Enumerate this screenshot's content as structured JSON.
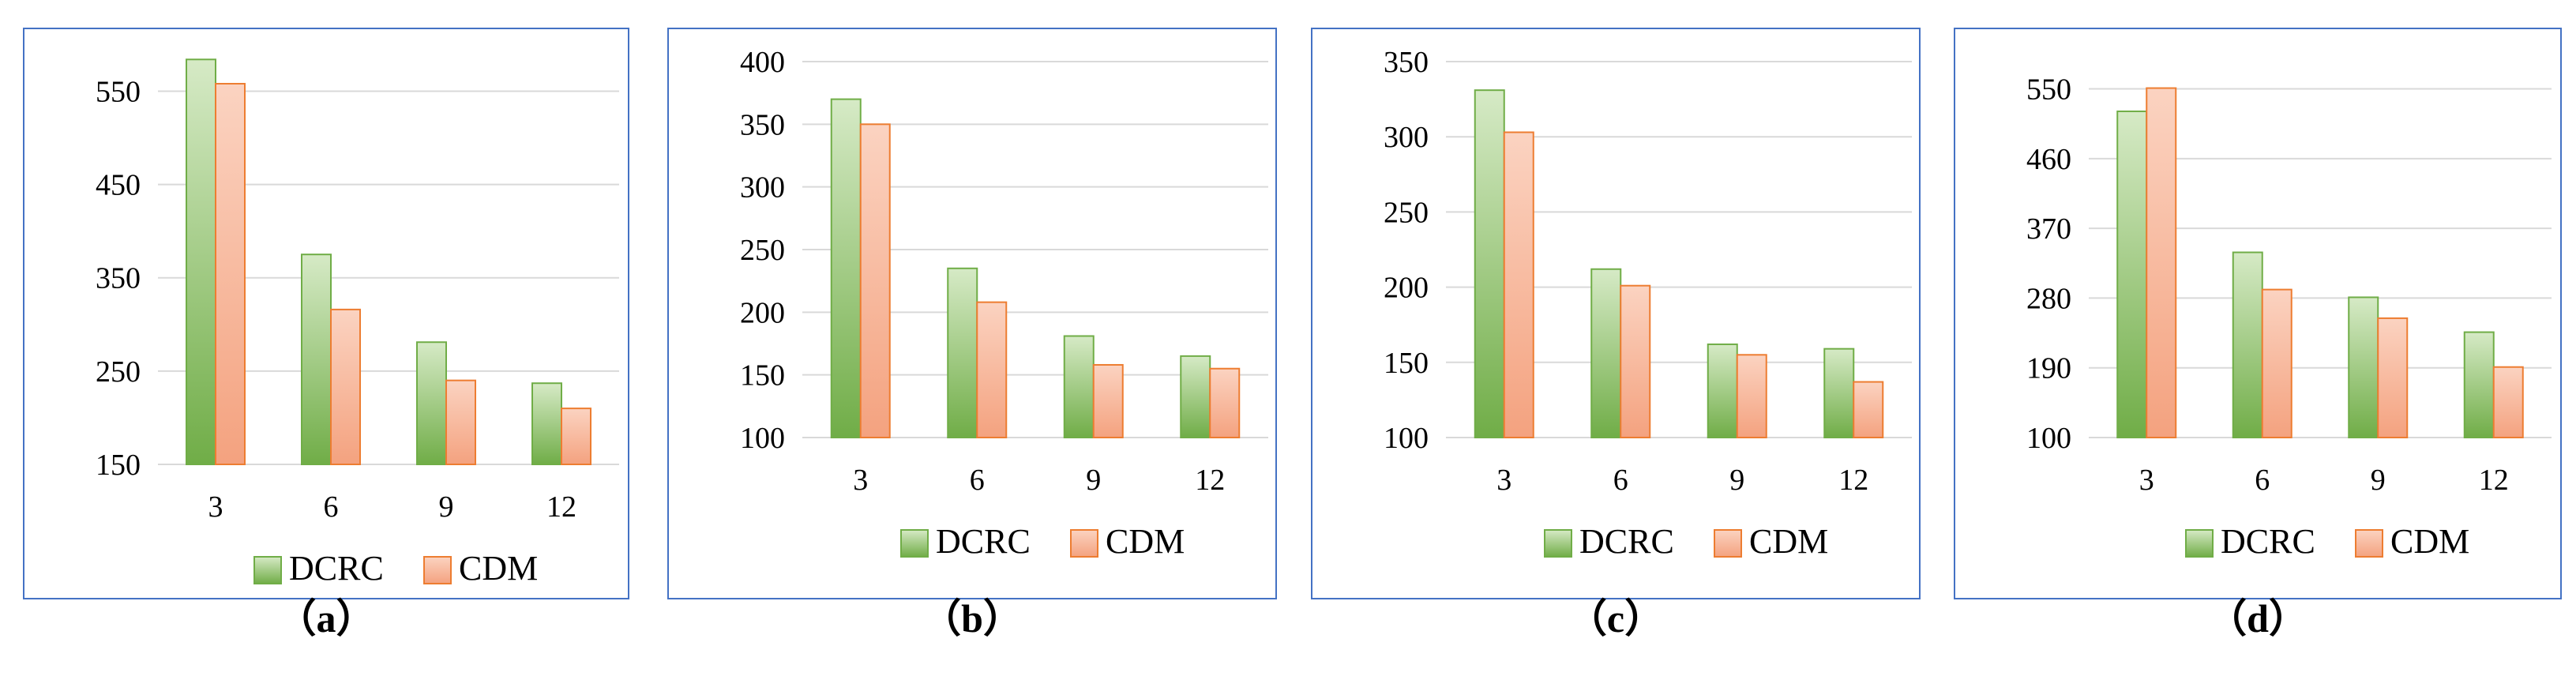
{
  "colors": {
    "frame": "#4472C4",
    "grid": "#D9D9D9",
    "text": "#000000",
    "dcrc_top": "#D6EAC6",
    "dcrc_bottom": "#70AD47",
    "dcrc_edge": "#70AD47",
    "cdm_top": "#FBD3C1",
    "cdm_bottom": "#F4A27F",
    "cdm_edge": "#ED7D31"
  },
  "chart_data": [
    {
      "type": "bar",
      "caption": "（a）",
      "categories": [
        "3",
        "6",
        "9",
        "12"
      ],
      "series": [
        {
          "name": "DCRC",
          "values": [
            584,
            375,
            281,
            237
          ]
        },
        {
          "name": "CDM",
          "values": [
            558,
            316,
            240,
            210
          ]
        }
      ],
      "yticks": [
        "150",
        "250",
        "350",
        "450",
        "550"
      ],
      "ylim": [
        150,
        580
      ],
      "legend": "bottom"
    },
    {
      "type": "bar",
      "caption": "（b）",
      "categories": [
        "3",
        "6",
        "9",
        "12"
      ],
      "series": [
        {
          "name": "DCRC",
          "values": [
            370,
            235,
            181,
            165
          ]
        },
        {
          "name": "CDM",
          "values": [
            350,
            208,
            158,
            155
          ]
        }
      ],
      "yticks": [
        "100",
        "150",
        "200",
        "250",
        "300",
        "350",
        "400"
      ],
      "ylim": [
        100,
        400
      ],
      "legend": "bottom"
    },
    {
      "type": "bar",
      "caption": "（c）",
      "categories": [
        "3",
        "6",
        "9",
        "12"
      ],
      "series": [
        {
          "name": "DCRC",
          "values": [
            331,
            212,
            162,
            159
          ]
        },
        {
          "name": "CDM",
          "values": [
            303,
            201,
            155,
            137
          ]
        }
      ],
      "yticks": [
        "100",
        "150",
        "200",
        "250",
        "300",
        "350"
      ],
      "ylim": [
        100,
        350
      ],
      "legend": "bottom"
    },
    {
      "type": "bar",
      "caption": "（d）",
      "categories": [
        "3",
        "6",
        "9",
        "12"
      ],
      "series": [
        {
          "name": "DCRC",
          "values": [
            521,
            339,
            281,
            236
          ]
        },
        {
          "name": "CDM",
          "values": [
            551,
            291,
            254,
            191
          ]
        }
      ],
      "yticks": [
        "100",
        "190",
        "280",
        "370",
        "460",
        "550"
      ],
      "ylim": [
        100,
        575
      ],
      "legend": "bottom"
    }
  ]
}
